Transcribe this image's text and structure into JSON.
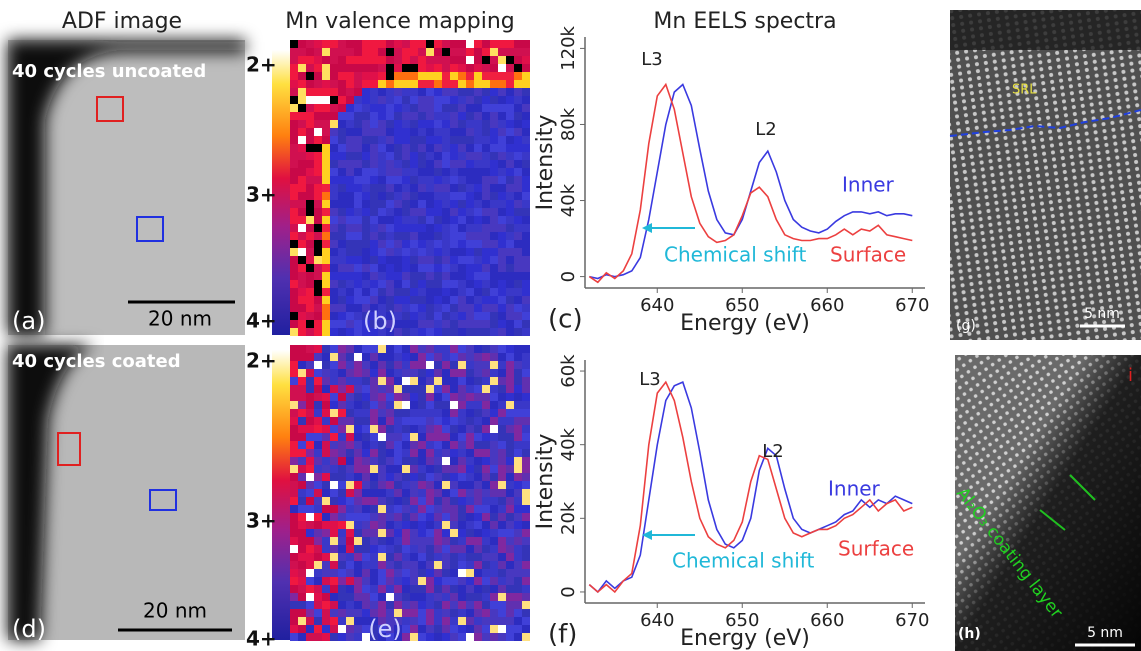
{
  "headers": {
    "adf": "ADF image",
    "valence": "Mn valence mapping"
  },
  "rows": [
    {
      "adf_label": "40 cycles uncoated",
      "adf_panel": "(a)",
      "scale_bar": "20 nm",
      "map_panel": "(b)",
      "colorbar": [
        "2+",
        "3+",
        "4+"
      ]
    },
    {
      "adf_label": "40 cycles coated",
      "adf_panel": "(d)",
      "scale_bar": "20 nm",
      "map_panel": "(e)",
      "colorbar": [
        "2+",
        "3+",
        "4+"
      ]
    }
  ],
  "hrtem": [
    {
      "panel": "(g)",
      "scale_bar": "5 nm",
      "region": "SRL"
    },
    {
      "panel": "(h)",
      "scale_bar": "5 nm",
      "corner": "i",
      "layer": "Al₂O₃ coating layer"
    }
  ],
  "chart_data": [
    {
      "type": "line",
      "title": "Mn EELS spectra",
      "panel": "(c)",
      "x_label": "Energy (eV)",
      "y_label": "Intensity",
      "x": [
        632,
        633,
        634,
        635,
        636,
        637,
        638,
        639,
        640,
        641,
        642,
        643,
        644,
        645,
        646,
        647,
        648,
        649,
        650,
        651,
        652,
        653,
        654,
        655,
        656,
        657,
        658,
        659,
        660,
        661,
        662,
        663,
        664,
        665,
        666,
        667,
        668,
        669,
        670
      ],
      "xlim": [
        631.5,
        671.5
      ],
      "xticks": [
        640,
        650,
        660,
        670
      ],
      "ylim": [
        -6000,
        126000
      ],
      "yticks": [
        0,
        {
          "value": 40000,
          "label": "40k"
        },
        {
          "value": 80000,
          "label": "80k"
        },
        {
          "value": 120000,
          "label": "120k"
        }
      ],
      "series": [
        {
          "name": "Inner",
          "color": "#3a3ae0",
          "values": [
            0,
            -1000,
            1000,
            0,
            1000,
            3000,
            10000,
            30000,
            55000,
            80000,
            97000,
            101000,
            90000,
            67000,
            45000,
            30000,
            23000,
            22000,
            30000,
            45000,
            60000,
            66000,
            55000,
            40000,
            30000,
            26000,
            24000,
            23000,
            25000,
            29000,
            32000,
            34000,
            34000,
            33000,
            34000,
            32000,
            33000,
            33000,
            32000
          ]
        },
        {
          "name": "Surface",
          "color": "#ec4040",
          "values": [
            0,
            -3000,
            2000,
            -1000,
            3000,
            12000,
            35000,
            70000,
            95000,
            101000,
            88000,
            65000,
            42000,
            28000,
            21000,
            18000,
            19000,
            22000,
            32000,
            44000,
            47000,
            42000,
            30000,
            22000,
            20000,
            19000,
            19000,
            20000,
            20000,
            22000,
            25000,
            22000,
            25000,
            24000,
            27000,
            22000,
            21000,
            20000,
            19000
          ]
        }
      ],
      "annotations": [
        "L3",
        "L2",
        "Chemical shift"
      ]
    },
    {
      "type": "line",
      "panel": "(f)",
      "x_label": "Energy (eV)",
      "y_label": "Intensity",
      "x": [
        632,
        633,
        634,
        635,
        636,
        637,
        638,
        639,
        640,
        641,
        642,
        643,
        644,
        645,
        646,
        647,
        648,
        649,
        650,
        651,
        652,
        653,
        654,
        655,
        656,
        657,
        658,
        659,
        660,
        661,
        662,
        663,
        664,
        665,
        666,
        667,
        668,
        669,
        670
      ],
      "xlim": [
        631.5,
        671.5
      ],
      "xticks": [
        640,
        650,
        660,
        670
      ],
      "ylim": [
        -3000,
        63000
      ],
      "yticks": [
        0,
        {
          "value": 20000,
          "label": "20k"
        },
        {
          "value": 40000,
          "label": "40k"
        },
        {
          "value": 60000,
          "label": "60k"
        }
      ],
      "series": [
        {
          "name": "Inner",
          "color": "#3a3ae0",
          "values": [
            2000,
            0,
            3000,
            1000,
            3000,
            4000,
            10000,
            25000,
            40000,
            52000,
            56000,
            57000,
            50000,
            38000,
            25000,
            17000,
            13000,
            12000,
            14000,
            20000,
            33000,
            39000,
            37000,
            28000,
            20000,
            17000,
            16000,
            17000,
            18000,
            19000,
            21000,
            22000,
            25000,
            23000,
            25000,
            24000,
            26000,
            25000,
            24000
          ]
        },
        {
          "name": "Surface",
          "color": "#ec4040",
          "values": [
            2000,
            0,
            2000,
            0,
            3000,
            5000,
            18000,
            40000,
            54000,
            57000,
            52000,
            42000,
            30000,
            20000,
            15000,
            13000,
            12000,
            14000,
            19000,
            30000,
            37000,
            36000,
            28000,
            20000,
            16000,
            15000,
            16000,
            17000,
            17000,
            18000,
            20000,
            21000,
            23000,
            25000,
            22000,
            24000,
            25000,
            22000,
            23000
          ]
        }
      ],
      "annotations": [
        "L3",
        "L2",
        "Chemical shift"
      ]
    }
  ]
}
